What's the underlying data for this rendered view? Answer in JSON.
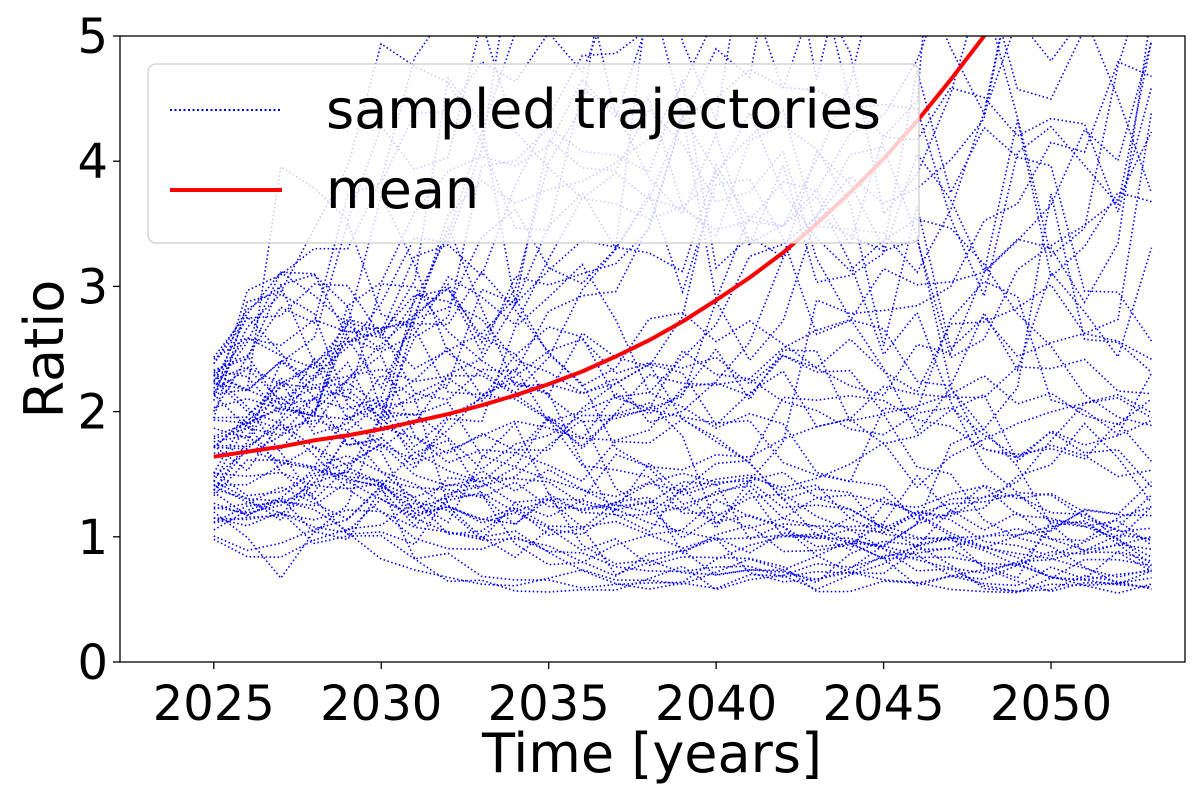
{
  "chart_data": {
    "type": "line",
    "title": "",
    "xlabel": "Time [years]",
    "ylabel": "Ratio",
    "xlim": [
      2022.2,
      2054.0
    ],
    "ylim": [
      0,
      5
    ],
    "xticks": [
      2025,
      2030,
      2035,
      2040,
      2045,
      2050
    ],
    "yticks": [
      0,
      1,
      2,
      3,
      4,
      5
    ],
    "grid": false,
    "legend_position": "top-left",
    "legend": [
      {
        "label": "sampled trajectories",
        "color": "#0000ff",
        "style": "dotted"
      },
      {
        "label": "mean",
        "color": "#ff0000",
        "style": "solid"
      }
    ],
    "x_start": 2025,
    "x_end": 2053,
    "x_step": 1,
    "series": [
      {
        "name": "mean",
        "x": [
          2025,
          2026,
          2027,
          2028,
          2029,
          2030,
          2031,
          2032,
          2033,
          2034,
          2035,
          2036,
          2037,
          2038,
          2039,
          2040,
          2041,
          2042,
          2043,
          2044,
          2045,
          2046,
          2047,
          2048,
          2049,
          2050
        ],
        "values": [
          1.64,
          1.68,
          1.72,
          1.77,
          1.81,
          1.86,
          1.92,
          1.98,
          2.05,
          2.13,
          2.22,
          2.32,
          2.44,
          2.57,
          2.72,
          2.89,
          3.07,
          3.27,
          3.5,
          3.75,
          4.02,
          4.32,
          4.65,
          5.0,
          5.38,
          5.8
        ]
      }
    ],
    "sampled_trajectories": {
      "count": 60,
      "start_range": [
        0.95,
        2.45
      ],
      "end_range": [
        0.85,
        5.0
      ],
      "minimum_observed": 0.55,
      "note": "stochastic sample paths, values clipped at y=5"
    },
    "colors": {
      "trajectory": "#0000ff",
      "mean": "#ff0000",
      "axis": "#000000"
    }
  }
}
